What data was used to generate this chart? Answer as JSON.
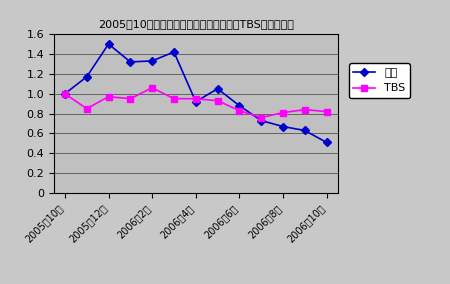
{
  "title": "2005年10月末日株価を基準にした楽天とTBSの株価動向",
  "x_labels": [
    "2005年10月",
    "2005年12月",
    "2006年2月",
    "2006年4月",
    "2006年6月",
    "2006年8月",
    "2006年10月"
  ],
  "rakuten": [
    1.0,
    1.17,
    1.5,
    1.32,
    1.33,
    1.42,
    0.92,
    1.05,
    0.88,
    0.73,
    0.67,
    0.63,
    0.51
  ],
  "tbs": [
    1.0,
    0.85,
    0.97,
    0.95,
    1.06,
    0.95,
    0.95,
    0.93,
    0.83,
    0.76,
    0.81,
    0.84,
    0.82
  ],
  "rakuten_color": "#0000CD",
  "tbs_color": "#FF00FF",
  "plot_bg_color": "#C0C0C0",
  "fig_bg_color": "#C8C8C8",
  "ylim": [
    0,
    1.6
  ],
  "yticks": [
    0,
    0.2,
    0.4,
    0.6,
    0.8,
    1.0,
    1.2,
    1.4,
    1.6
  ],
  "legend_rakuten": "楽天",
  "legend_tbs": "TBS",
  "x_tick_positions": [
    0,
    2,
    4,
    6,
    8,
    10,
    12
  ]
}
